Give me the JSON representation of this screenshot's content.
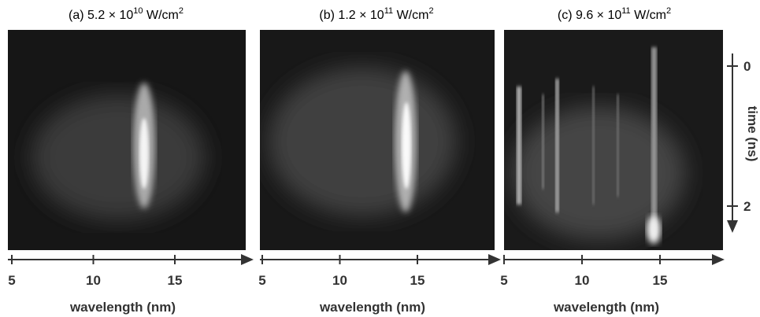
{
  "panels": [
    {
      "title": {
        "prefix": "(a) 5.2 × 10",
        "exponent": "10",
        "unit": " W/cm",
        "unit_exponent": "2"
      },
      "x_ticks": [
        5,
        10,
        15
      ],
      "x_label": "wavelength (nm)"
    },
    {
      "title": {
        "prefix": "(b) 1.2 × 10",
        "exponent": "11",
        "unit": " W/cm",
        "unit_exponent": "2"
      },
      "x_ticks": [
        5,
        10,
        15
      ],
      "x_label": "wavelength (nm)"
    },
    {
      "title": {
        "prefix": "(c) 9.6 × 10",
        "exponent": "11",
        "unit": " W/cm",
        "unit_exponent": "2"
      },
      "x_ticks": [
        5,
        10,
        15
      ],
      "x_label": "wavelength (nm)"
    }
  ],
  "time_axis": {
    "ticks": [
      0,
      2
    ],
    "label": "time (ns)"
  }
}
